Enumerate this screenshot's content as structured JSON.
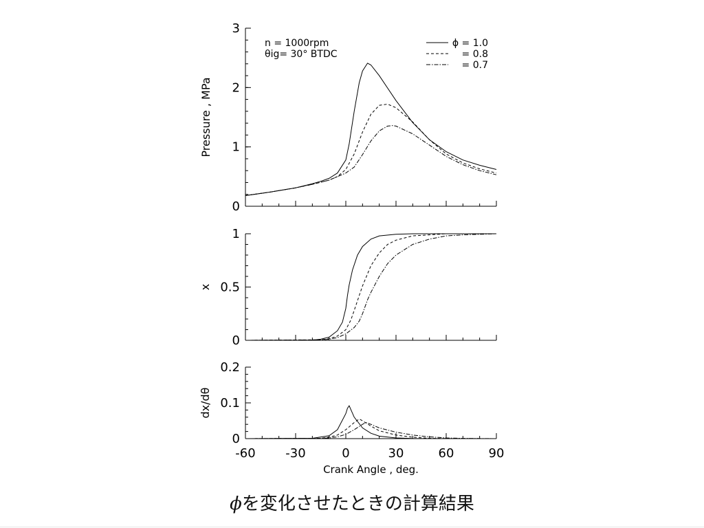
{
  "caption": {
    "symbol": "ϕ",
    "text": "を変化させたときの計算結果"
  },
  "chart_data": [
    {
      "type": "line",
      "id": "pressure",
      "ylabel": "Pressure , MPa",
      "ylim": [
        0,
        3
      ],
      "xlim": [
        -60,
        90
      ],
      "yticks": [
        "0",
        "1",
        "2",
        "3"
      ],
      "annotations": [
        "n = 1000rpm",
        "θig= 30°  BTDC"
      ],
      "legend_position": "top-right",
      "legend": [
        "ϕ = 1.0",
        "= 0.8",
        "= 0.7"
      ],
      "series": [
        {
          "name": "ϕ = 1.0",
          "style": "solid",
          "x": [
            -60,
            -45,
            -30,
            -20,
            -15,
            -10,
            -5,
            0,
            2,
            5,
            8,
            10,
            13,
            15,
            20,
            30,
            40,
            50,
            60,
            70,
            80,
            90
          ],
          "y": [
            0.18,
            0.24,
            0.31,
            0.38,
            0.42,
            0.47,
            0.56,
            0.78,
            1.05,
            1.6,
            2.08,
            2.28,
            2.41,
            2.38,
            2.2,
            1.78,
            1.41,
            1.12,
            0.92,
            0.78,
            0.69,
            0.62
          ]
        },
        {
          "name": "= 0.8",
          "style": "dashed",
          "x": [
            -60,
            -45,
            -30,
            -20,
            -10,
            -5,
            0,
            5,
            10,
            15,
            20,
            25,
            30,
            40,
            50,
            60,
            70,
            80,
            90
          ],
          "y": [
            0.18,
            0.24,
            0.31,
            0.37,
            0.44,
            0.5,
            0.62,
            0.88,
            1.25,
            1.55,
            1.7,
            1.72,
            1.66,
            1.42,
            1.12,
            0.88,
            0.73,
            0.63,
            0.56
          ]
        },
        {
          "name": "= 0.7",
          "style": "dashdot",
          "x": [
            -60,
            -45,
            -30,
            -20,
            -10,
            0,
            5,
            10,
            15,
            20,
            25,
            28,
            30,
            40,
            50,
            60,
            70,
            80,
            90
          ],
          "y": [
            0.18,
            0.24,
            0.31,
            0.37,
            0.44,
            0.56,
            0.66,
            0.87,
            1.1,
            1.27,
            1.35,
            1.36,
            1.35,
            1.22,
            1.03,
            0.84,
            0.7,
            0.6,
            0.53
          ]
        }
      ]
    },
    {
      "type": "line",
      "id": "mass-fraction",
      "ylabel": "x",
      "ylim": [
        0,
        1
      ],
      "xlim": [
        -60,
        90
      ],
      "yticks": [
        "0",
        "0.5",
        "1"
      ],
      "series": [
        {
          "name": "ϕ = 1.0",
          "style": "solid",
          "x": [
            -60,
            -20,
            -15,
            -10,
            -5,
            -2,
            0,
            1,
            2,
            4,
            7,
            10,
            15,
            20,
            30,
            40,
            60,
            90
          ],
          "y": [
            0,
            0.002,
            0.01,
            0.03,
            0.09,
            0.17,
            0.3,
            0.42,
            0.52,
            0.66,
            0.8,
            0.88,
            0.95,
            0.98,
            0.995,
            1.0,
            1.0,
            1.0
          ]
        },
        {
          "name": "= 0.8",
          "style": "dashed",
          "x": [
            -60,
            -15,
            -10,
            -5,
            0,
            3,
            5,
            8,
            10,
            15,
            20,
            25,
            30,
            40,
            50,
            60,
            90
          ],
          "y": [
            0,
            0.005,
            0.015,
            0.04,
            0.1,
            0.19,
            0.28,
            0.42,
            0.51,
            0.7,
            0.82,
            0.9,
            0.94,
            0.98,
            0.99,
            1.0,
            1.0
          ]
        },
        {
          "name": "= 0.7",
          "style": "dashdot",
          "x": [
            -60,
            -15,
            -10,
            -5,
            0,
            5,
            8,
            10,
            13,
            15,
            20,
            25,
            30,
            40,
            50,
            60,
            70,
            90
          ],
          "y": [
            0,
            0.004,
            0.01,
            0.025,
            0.06,
            0.12,
            0.18,
            0.25,
            0.38,
            0.45,
            0.6,
            0.72,
            0.8,
            0.9,
            0.95,
            0.98,
            0.99,
            1.0
          ]
        }
      ]
    },
    {
      "type": "line",
      "id": "burn-rate",
      "xlabel": "Crank Angle , deg.",
      "ylabel": "dx/dθ",
      "ylim": [
        0,
        0.2
      ],
      "xlim": [
        -60,
        90
      ],
      "xticks": [
        "-60",
        "-30",
        "0",
        "30",
        "60",
        "90"
      ],
      "yticks": [
        "0",
        "0.1",
        "0.2"
      ],
      "series": [
        {
          "name": "ϕ = 1.0",
          "style": "solid",
          "x": [
            -60,
            -20,
            -10,
            -5,
            0,
            1,
            2,
            5,
            10,
            15,
            20,
            30,
            40,
            60,
            90
          ],
          "y": [
            0,
            0.001,
            0.008,
            0.025,
            0.07,
            0.085,
            0.092,
            0.06,
            0.03,
            0.015,
            0.007,
            0.002,
            0.0005,
            0,
            0
          ]
        },
        {
          "name": "= 0.8",
          "style": "dashed",
          "x": [
            -60,
            -15,
            -10,
            -5,
            0,
            5,
            8,
            10,
            15,
            20,
            30,
            40,
            50,
            60,
            90
          ],
          "y": [
            0,
            0.001,
            0.004,
            0.01,
            0.025,
            0.045,
            0.055,
            0.05,
            0.035,
            0.022,
            0.01,
            0.004,
            0.001,
            0.0003,
            0
          ]
        },
        {
          "name": "= 0.7",
          "style": "dashdot",
          "x": [
            -60,
            -15,
            -10,
            -5,
            0,
            5,
            10,
            12,
            15,
            20,
            30,
            40,
            50,
            60,
            70,
            90
          ],
          "y": [
            0,
            0.001,
            0.002,
            0.005,
            0.012,
            0.025,
            0.04,
            0.045,
            0.04,
            0.03,
            0.018,
            0.01,
            0.005,
            0.002,
            0.0008,
            0
          ]
        }
      ]
    }
  ]
}
